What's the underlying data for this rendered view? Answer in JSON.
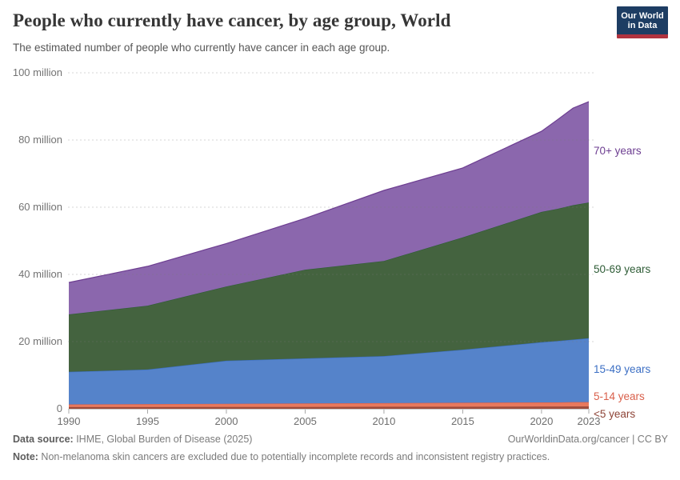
{
  "header": {
    "title": "People who currently have cancer, by age group, World",
    "subtitle": "The estimated number of people who currently have cancer in each age group.",
    "logo": {
      "line1": "Our World",
      "line2": "in Data",
      "bg_color": "#1d3d63",
      "stripe_color": "#b0333f"
    }
  },
  "chart_data": {
    "type": "area",
    "stacked": true,
    "title": "People who currently have cancer, by age group, World",
    "xlabel": "",
    "ylabel": "",
    "unit": "million",
    "xlim": [
      1990,
      2023
    ],
    "ylim": [
      0,
      100
    ],
    "grid": "dashed horizontal",
    "legend_position": "right edge labels",
    "x": [
      1990,
      1995,
      2000,
      2005,
      2010,
      2015,
      2020,
      2021,
      2022,
      2023
    ],
    "series": [
      {
        "id": "under-5-years",
        "name": "<5 years",
        "fill": "#a04e3d",
        "line": "#8e4437",
        "label_color": "#8e4437",
        "values": [
          0.5,
          0.5,
          0.55,
          0.55,
          0.6,
          0.6,
          0.65,
          0.65,
          0.7,
          0.7
        ]
      },
      {
        "id": "5-14-years",
        "name": "5-14 years",
        "fill": "#e8795d",
        "line": "#d95f4a",
        "label_color": "#d95f4a",
        "values": [
          0.8,
          0.9,
          0.95,
          1.05,
          1.1,
          1.2,
          1.25,
          1.25,
          1.3,
          1.3
        ]
      },
      {
        "id": "15-49-years",
        "name": "15-49 years",
        "fill": "#5583ca",
        "line": "#3c6fc4",
        "label_color": "#3c6fc4",
        "values": [
          9.7,
          10.3,
          12.8,
          13.4,
          14.0,
          15.8,
          17.9,
          18.3,
          18.6,
          19.0
        ]
      },
      {
        "id": "50-69-years",
        "name": "50-69 years",
        "fill": "#44633f",
        "line": "#2e5c36",
        "label_color": "#2e5c36",
        "values": [
          17.1,
          19.0,
          22.1,
          26.4,
          28.3,
          33.4,
          38.8,
          39.3,
          40.0,
          40.4
        ]
      },
      {
        "id": "70-plus-years",
        "name": "70+ years",
        "fill": "#8b67ad",
        "line": "#6d3e91",
        "label_color": "#6d3e91",
        "values": [
          9.5,
          11.7,
          12.8,
          15.3,
          21.0,
          20.7,
          24.0,
          26.5,
          28.9,
          30.0
        ]
      }
    ],
    "yticks": [
      0,
      20,
      40,
      60,
      80,
      100
    ],
    "ytick_labels": [
      "0",
      "20 million",
      "40 million",
      "60 million",
      "80 million",
      "100 million"
    ],
    "xticks": [
      1990,
      1995,
      2000,
      2005,
      2010,
      2015,
      2020,
      2023
    ]
  },
  "footer": {
    "source_label": "Data source:",
    "source_text": " IHME, Global Burden of Disease (2025)",
    "link_text": "OurWorldinData.org/cancer | CC BY",
    "note_label": "Note:",
    "note_text": " Non-melanoma skin cancers are excluded due to potentially incomplete records and inconsistent registry practices."
  }
}
